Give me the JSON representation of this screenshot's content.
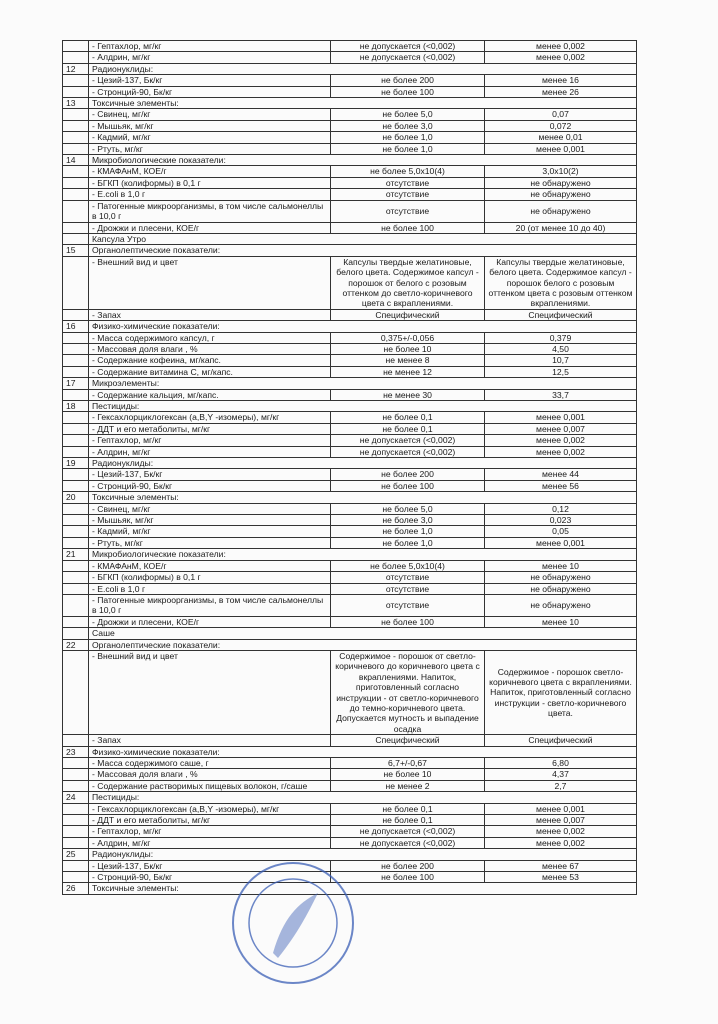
{
  "table": {
    "rows": [
      [
        "",
        "- Гептахлор,  мг/кг",
        "не допускается (<0,002)",
        "менее 0,002"
      ],
      [
        "",
        "- Алдрин,  мг/кг",
        "не допускается (<0,002)",
        "менее 0,002"
      ],
      [
        "12",
        "Радионуклиды:"
      ],
      [
        "",
        "- Цезий-137,  Бк/кг",
        "не более 200",
        "менее 16"
      ],
      [
        "",
        "- Стронций-90,  Бк/кг",
        "не более 100",
        "менее 26"
      ],
      [
        "13",
        "Токсичные элементы:"
      ],
      [
        "",
        "- Свинец,  мг/кг",
        "не более 5,0",
        "0,07"
      ],
      [
        "",
        "- Мышьяк,  мг/кг",
        "не более 3,0",
        "0,072"
      ],
      [
        "",
        "- Кадмий,  мг/кг",
        "не более 1,0",
        "менее 0,01"
      ],
      [
        "",
        "- Ртуть,  мг/кг",
        "не более 1,0",
        "менее 0,001"
      ],
      [
        "14",
        "Микробиологические показатели:"
      ],
      [
        "",
        "- КМАФАнМ,  КОЕ/г",
        "не более 5,0x10(4)",
        "3,0x10(2)"
      ],
      [
        "",
        "- БГКП (колиформы)   в 0,1 г",
        "отсутствие",
        "не обнаружено"
      ],
      [
        "",
        "- E.coli   в 1,0 г",
        "отсутствие",
        "не обнаружено"
      ],
      [
        "",
        "- Патогенные микроорганизмы, в том числе сальмонеллы   в 10,0 г",
        "отсутствие",
        "не обнаружено"
      ],
      [
        "",
        "- Дрожжи и плесени,  КОЕ/г",
        "не более 100",
        "20 (от менее 10 до 40)"
      ],
      [
        "",
        "Капсула Утро"
      ],
      [
        "15",
        "Органолептические показатели:"
      ],
      [
        "",
        "- Внешний вид и цвет",
        "Капсулы твердые желатиновые, белого  цвета. Содержимое капсул - порошок от белого с розовым оттенком до светло-коричневого цвета с вкраплениями.",
        "Капсулы твердые желатиновые, белого  цвета. Содержимое капсул - порошок белого с розовым оттенком цвета с розовым оттенком вкраплениями."
      ],
      [
        "",
        "- Запах",
        "Специфический",
        "Специфический"
      ],
      [
        "16",
        "Физико-химические показатели:"
      ],
      [
        "",
        "- Масса содержимого капсул,  г",
        "0,375+/-0,056",
        "0,379"
      ],
      [
        "",
        "- Массовая доля влаги ,  %",
        "не более 10",
        "4,50"
      ],
      [
        "",
        "- Содержание кофеина,  мг/капс.",
        "не менее 8",
        "10,7"
      ],
      [
        "",
        "- Содержание витамина С,  мг/капс.",
        "не менее 12",
        "12,5"
      ],
      [
        "17",
        "Микроэлементы:"
      ],
      [
        "",
        "- Содержание кальция,  мг/капс.",
        "не менее 30",
        "33,7"
      ],
      [
        "18",
        "Пестициды:"
      ],
      [
        "",
        "- Гексахлорциклогексан (a,B,Y -изомеры),  мг/кг",
        "не более 0,1",
        "менее 0,001"
      ],
      [
        "",
        "- ДДТ и его метаболиты,  мг/кг",
        "не более 0,1",
        "менее 0,007"
      ],
      [
        "",
        "- Гептахлор,  мг/кг",
        "не допускается (<0,002)",
        "менее 0,002"
      ],
      [
        "",
        "- Алдрин,  мг/кг",
        "не допускается (<0,002)",
        "менее 0,002"
      ],
      [
        "19",
        "Радионуклиды:"
      ],
      [
        "",
        "- Цезий-137,  Бк/кг",
        "не более 200",
        "менее 44"
      ],
      [
        "",
        "- Стронций-90,  Бк/кг",
        "не более 100",
        "менее 56"
      ],
      [
        "20",
        "Токсичные элементы:"
      ],
      [
        "",
        "- Свинец,  мг/кг",
        "не более 5,0",
        "0,12"
      ],
      [
        "",
        "- Мышьяк,  мг/кг",
        "не более 3,0",
        "0,023"
      ],
      [
        "",
        "- Кадмий,  мг/кг",
        "не более 1,0",
        "0,05"
      ],
      [
        "",
        "- Ртуть,  мг/кг",
        "не более 1,0",
        "менее 0,001"
      ],
      [
        "21",
        "Микробиологические показатели:"
      ],
      [
        "",
        "- КМАФАнМ,  КОЕ/г",
        "не более 5,0x10(4)",
        "менее 10"
      ],
      [
        "",
        "- БГКП (колиформы)   в 0,1 г",
        "отсутствие",
        "не обнаружено"
      ],
      [
        "",
        "- E.coli   в 1,0 г",
        "отсутствие",
        "не обнаружено"
      ],
      [
        "",
        "- Патогенные микроорганизмы, в том числе сальмонеллы   в 10,0 г",
        "отсутствие",
        "не обнаружено"
      ],
      [
        "",
        "- Дрожжи и плесени,  КОЕ/г",
        "не более 100",
        "менее 10"
      ],
      [
        "",
        "Саше"
      ],
      [
        "22",
        "Органолептические показатели:"
      ],
      [
        "",
        "- Внешний вид и цвет",
        "Содержимое - порошок от светло-коричневого до коричневого цвета с вкраплениями. Напиток, приготовленный согласно инструкции - от светло-коричневого до темно-коричневого цвета. Допускается мутность и выпадение осадка",
        "Содержимое - порошок светло-коричневого цвета с вкраплениями. Напиток, приготовленный согласно инструкции -  светло-коричневого цвета."
      ],
      [
        "",
        "- Запах",
        "Специфический",
        "Специфический"
      ],
      [
        "23",
        "Физико-химические показатели:"
      ],
      [
        "",
        "- Масса содержимого саше,  г",
        "6,7+/-0,67",
        "6,80"
      ],
      [
        "",
        "- Массовая доля влаги ,  %",
        "не более 10",
        "4,37"
      ],
      [
        "",
        "- Содержание растворимых пищевых волокон,  г/саше",
        "не менее 2",
        "2,7"
      ],
      [
        "24",
        "Пестициды:"
      ],
      [
        "",
        "- Гексахлорциклогексан (a,B,Y -изомеры),  мг/кг",
        "не более 0,1",
        "менее 0,001"
      ],
      [
        "",
        "- ДДТ и его метаболиты,  мг/кг",
        "не более 0,1",
        "менее 0,007"
      ],
      [
        "",
        "- Гептахлор,  мг/кг",
        "не допускается (<0,002)",
        "менее 0,002"
      ],
      [
        "",
        "- Алдрин,  мг/кг",
        "не допускается (<0,002)",
        "менее 0,002"
      ],
      [
        "25",
        "Радионуклиды:"
      ],
      [
        "",
        "- Цезий-137,  Бк/кг",
        "не более 200",
        "менее 67"
      ],
      [
        "",
        "- Стронций-90,  Бк/кг",
        "не более 100",
        "менее 53"
      ],
      [
        "26",
        "Токсичные элементы:"
      ]
    ]
  }
}
